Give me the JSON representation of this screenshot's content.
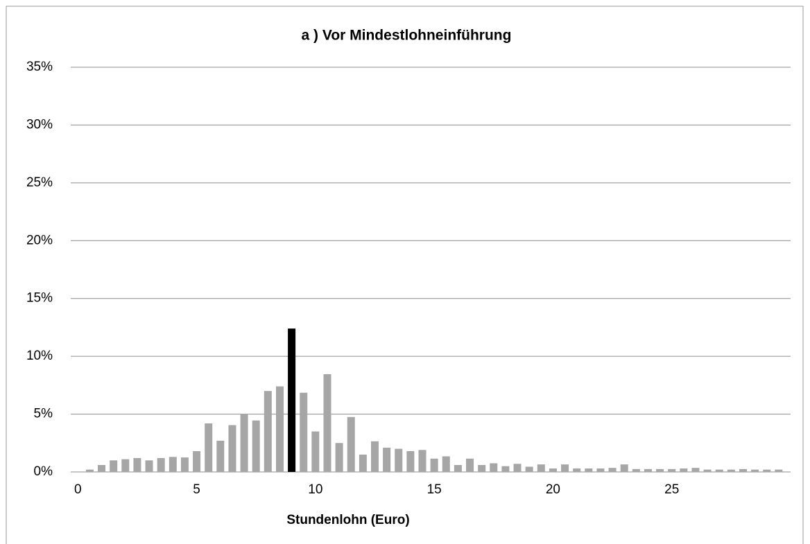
{
  "chart_data": {
    "type": "bar",
    "title": "a ) Vor Mindestlohneinführung",
    "x_label": "Stundenlohn (Euro)",
    "x": [
      0.5,
      1,
      1.5,
      2,
      2.5,
      3,
      3.5,
      4,
      4.5,
      5,
      5.5,
      6,
      6.5,
      7,
      7.5,
      8,
      8.5,
      9,
      9.5,
      10,
      10.5,
      11,
      11.5,
      12,
      12.5,
      13,
      13.5,
      14,
      14.5,
      15,
      15.5,
      16,
      16.5,
      17,
      17.5,
      18,
      18.5,
      19,
      19.5,
      20,
      20.5,
      21,
      21.5,
      22,
      22.5,
      23,
      23.5,
      24,
      24.5,
      25,
      25.5,
      26,
      26.5,
      27,
      27.5,
      28,
      28.5,
      29,
      29.5
    ],
    "values": [
      0.2,
      0.6,
      1.0,
      1.1,
      1.2,
      1.0,
      1.2,
      1.3,
      1.25,
      1.8,
      4.2,
      2.7,
      4.05,
      5.0,
      4.45,
      7.0,
      7.4,
      12.4,
      6.85,
      3.5,
      8.45,
      2.5,
      4.75,
      1.5,
      2.65,
      2.1,
      2.0,
      1.8,
      1.9,
      1.15,
      1.35,
      0.6,
      1.15,
      0.6,
      0.75,
      0.5,
      0.7,
      0.45,
      0.65,
      0.3,
      0.65,
      0.3,
      0.3,
      0.3,
      0.35,
      0.65,
      0.25,
      0.25,
      0.25,
      0.25,
      0.3,
      0.35,
      0.2,
      0.2,
      0.2,
      0.25,
      0.2,
      0.2,
      0.2
    ],
    "color": "#a6a6a6",
    "colors": [
      "#a6a6a6",
      "#a6a6a6",
      "#a6a6a6",
      "#a6a6a6",
      "#a6a6a6",
      "#a6a6a6",
      "#a6a6a6",
      "#a6a6a6",
      "#a6a6a6",
      "#a6a6a6",
      "#a6a6a6",
      "#a6a6a6",
      "#a6a6a6",
      "#a6a6a6",
      "#a6a6a6",
      "#a6a6a6",
      "#a6a6a6",
      "#000000",
      "#a6a6a6",
      "#a6a6a6",
      "#a6a6a6",
      "#a6a6a6",
      "#a6a6a6",
      "#a6a6a6",
      "#a6a6a6",
      "#a6a6a6",
      "#a6a6a6",
      "#a6a6a6",
      "#a6a6a6",
      "#a6a6a6",
      "#a6a6a6",
      "#a6a6a6",
      "#a6a6a6",
      "#a6a6a6",
      "#a6a6a6",
      "#a6a6a6",
      "#a6a6a6",
      "#a6a6a6",
      "#a6a6a6",
      "#a6a6a6",
      "#a6a6a6",
      "#a6a6a6",
      "#a6a6a6",
      "#a6a6a6",
      "#a6a6a6",
      "#a6a6a6",
      "#a6a6a6",
      "#a6a6a6",
      "#a6a6a6",
      "#a6a6a6",
      "#a6a6a6",
      "#a6a6a6",
      "#a6a6a6",
      "#a6a6a6",
      "#a6a6a6",
      "#a6a6a6",
      "#a6a6a6",
      "#a6a6a6",
      "#a6a6a6"
    ],
    "xlim": [
      -0.3,
      30
    ],
    "xticks": [
      0,
      5,
      10,
      15,
      20,
      25
    ],
    "ylim": [
      0,
      35
    ],
    "yticks": [
      {
        "value": 0,
        "label": "0%"
      },
      {
        "value": 5,
        "label": "5%"
      },
      {
        "value": 10,
        "label": "10%"
      },
      {
        "value": 15,
        "label": "15%"
      },
      {
        "value": 20,
        "label": "20%"
      },
      {
        "value": 25,
        "label": "25%"
      },
      {
        "value": 30,
        "label": "30%"
      },
      {
        "value": 35,
        "label": "35%"
      }
    ],
    "grid": true
  }
}
